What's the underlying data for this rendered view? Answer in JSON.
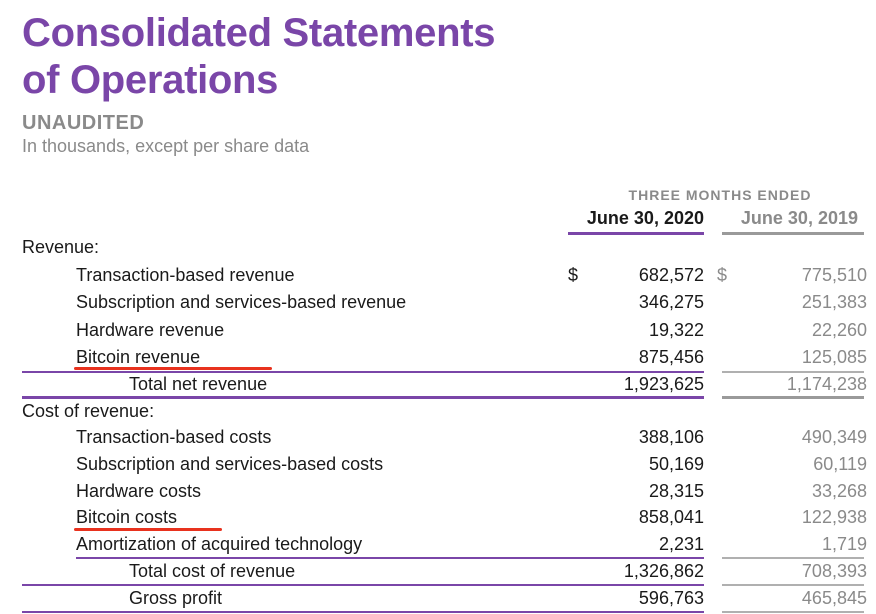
{
  "title": {
    "line1": "Consolidated Statements",
    "line2": "of Operations"
  },
  "subtitle": "UNAUDITED",
  "units_note": "In thousands, except per share data",
  "period_header": "THREE MONTHS ENDED",
  "columns": {
    "current": "June 30, 2020",
    "prior": "June 30, 2019"
  },
  "currency_symbol": "$",
  "colors": {
    "accent": "#7a46a8",
    "muted": "#8a8a8a",
    "highlight": "#e8321e"
  },
  "rows": [
    {
      "label": "Revenue:",
      "current": "",
      "prior": ""
    },
    {
      "label": "Transaction-based revenue",
      "current": "682,572",
      "prior": "775,510"
    },
    {
      "label": "Subscription and services-based revenue",
      "current": "346,275",
      "prior": "251,383"
    },
    {
      "label": "Hardware revenue",
      "current": "19,322",
      "prior": "22,260"
    },
    {
      "label": "Bitcoin revenue",
      "current": "875,456",
      "prior": "125,085"
    },
    {
      "label": "Total net revenue",
      "current": "1,923,625",
      "prior": "1,174,238"
    },
    {
      "label": "Cost of revenue:",
      "current": "",
      "prior": ""
    },
    {
      "label": "Transaction-based costs",
      "current": "388,106",
      "prior": "490,349"
    },
    {
      "label": "Subscription and services-based costs",
      "current": "50,169",
      "prior": "60,119"
    },
    {
      "label": "Hardware costs",
      "current": "28,315",
      "prior": "33,268"
    },
    {
      "label": "Bitcoin costs",
      "current": "858,041",
      "prior": "122,938"
    },
    {
      "label": "Amortization of acquired technology",
      "current": "2,231",
      "prior": "1,719"
    },
    {
      "label": "Total cost of revenue",
      "current": "1,326,862",
      "prior": "708,393"
    },
    {
      "label": "Gross profit",
      "current": "596,763",
      "prior": "465,845"
    }
  ]
}
